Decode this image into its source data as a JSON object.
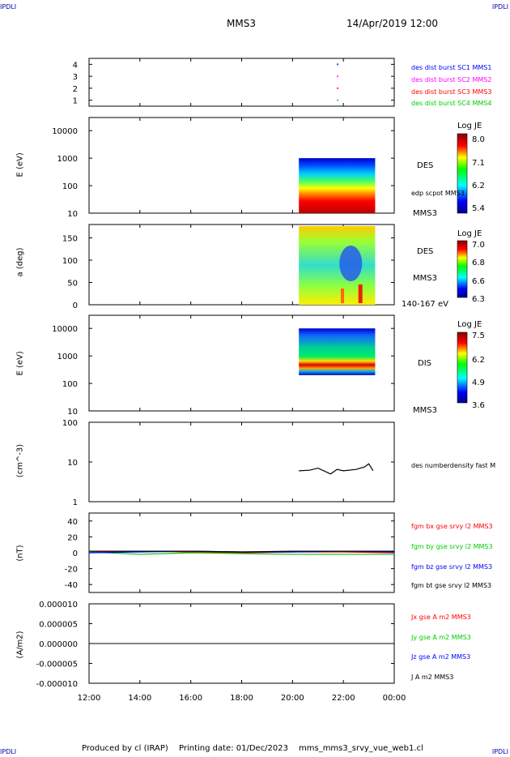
{
  "corners": {
    "tl": "IPDLI",
    "tr": "IPDLI",
    "bl": "IPDLI",
    "br": "IPDLI"
  },
  "header": {
    "spacecraft": "MMS3",
    "datetime": "14/Apr/2019 12:00"
  },
  "footer": {
    "produced_by": "Produced by cl (IRAP)",
    "printing_date": "Printing date: 01/Dec/2023",
    "filename": "mms_mms3_srvy_vue_web1.cl"
  },
  "colors": {
    "blue": "#0000ff",
    "magenta": "#ff00ff",
    "red": "#ff0000",
    "green": "#00cc00",
    "black": "#000000"
  },
  "x_axis": {
    "ticks": [
      "12:00",
      "14:00",
      "16:00",
      "18:00",
      "20:00",
      "22:00",
      "00:00"
    ]
  },
  "panels": {
    "burst": {
      "yticks": [
        "4",
        "3",
        "2",
        "1"
      ],
      "legend": [
        "des dist burst SC1 MMS1",
        "des dist burst SC2 MMS2",
        "des dist burst SC3 MMS3",
        "des dist burst SC4 MMS4"
      ]
    },
    "des_energy": {
      "ylabel": "E (eV)",
      "yticks": [
        "10000",
        "1000",
        "100",
        "10"
      ],
      "right1": "DES",
      "right2": "edp scpot MMS3",
      "right3": "MMS3",
      "cb_title": "Log JE",
      "cb_ticks": [
        "8.0",
        "7.1",
        "6.2",
        "5.4"
      ]
    },
    "des_pitch": {
      "ylabel": "a (deg)",
      "yticks": [
        "150",
        "100",
        "50",
        "0"
      ],
      "right1": "DES",
      "right2": "MMS3",
      "right3": "140-167 eV",
      "cb_title": "Log JE",
      "cb_ticks": [
        "7.0",
        "6.8",
        "6.6",
        "6.3"
      ]
    },
    "dis_energy": {
      "ylabel": "E (eV)",
      "yticks": [
        "10000",
        "1000",
        "100",
        "10"
      ],
      "right1": "DIS",
      "right2": "MMS3",
      "cb_title": "Log JE",
      "cb_ticks": [
        "7.5",
        "6.2",
        "4.9",
        "3.6"
      ]
    },
    "density": {
      "ylabel": "(cm^-3)",
      "yticks": [
        "100",
        "10",
        "1"
      ],
      "legend": "des numberdensity fast M"
    },
    "bfield": {
      "ylabel": "(nT)",
      "yticks": [
        "40",
        "20",
        "0",
        "-20",
        "-40"
      ],
      "legend": [
        "fgm bx gse srvy l2 MMS3",
        "fgm by gse srvy l2 MMS3",
        "fgm bz gse srvy l2 MMS3",
        "fgm bt gse srvy l2 MMS3"
      ]
    },
    "current": {
      "ylabel": "(A/m2)",
      "yticks": [
        "0.000010",
        "0.000005",
        "0.000000",
        "-0.000005",
        "-0.000010"
      ],
      "legend": [
        "Jx gse A m2 MMS3",
        "Jy gse A m2 MMS3",
        "Jz gse A m2 MMS3",
        "J A m2 MMS3"
      ]
    }
  },
  "chart_data": [
    {
      "type": "scatter",
      "panel": "burst",
      "ylim": [
        0.5,
        4.5
      ],
      "xlabel": "",
      "ylabel": "",
      "series": [
        {
          "name": "des dist burst SC1 MMS1",
          "x": [
            "21:45"
          ],
          "y": [
            4
          ]
        },
        {
          "name": "des dist burst SC2 MMS2",
          "x": [
            "21:45"
          ],
          "y": [
            3
          ]
        },
        {
          "name": "des dist burst SC3 MMS3",
          "x": [
            "21:45"
          ],
          "y": [
            2
          ]
        },
        {
          "name": "des dist burst SC4 MMS4",
          "x": [
            "21:45"
          ],
          "y": [
            1
          ]
        }
      ]
    },
    {
      "type": "heatmap",
      "panel": "des_energy",
      "ylabel": "E (eV)",
      "yscale": "log",
      "ylim": [
        10,
        30000
      ],
      "x_range": [
        "20:15",
        "23:15"
      ],
      "y_range": [
        10,
        1000
      ],
      "colorbar": {
        "title": "Log JE",
        "range": [
          5.4,
          8.0
        ]
      }
    },
    {
      "type": "heatmap",
      "panel": "des_pitch",
      "ylabel": "a (deg)",
      "ylim": [
        0,
        180
      ],
      "x_range": [
        "20:15",
        "23:15"
      ],
      "y_range": [
        0,
        180
      ],
      "colorbar": {
        "title": "Log JE",
        "range": [
          6.3,
          7.0
        ]
      }
    },
    {
      "type": "heatmap",
      "panel": "dis_energy",
      "ylabel": "E (eV)",
      "yscale": "log",
      "ylim": [
        10,
        30000
      ],
      "x_range": [
        "20:15",
        "23:15"
      ],
      "y_range": [
        200,
        10000
      ],
      "colorbar": {
        "title": "Log JE",
        "range": [
          3.6,
          7.5
        ]
      }
    },
    {
      "type": "line",
      "panel": "density",
      "ylabel": "(cm^-3)",
      "yscale": "log",
      "ylim": [
        1,
        100
      ],
      "series": [
        {
          "name": "des numberdensity fast M",
          "x": [
            "20:15",
            "20:40",
            "21:00",
            "21:30",
            "21:45",
            "22:00",
            "22:30",
            "22:50",
            "23:00",
            "23:10"
          ],
          "y": [
            6,
            6.2,
            7,
            5,
            6.5,
            6,
            6.5,
            7.5,
            9,
            6
          ]
        }
      ]
    },
    {
      "type": "line",
      "panel": "bfield",
      "ylabel": "(nT)",
      "ylim": [
        -50,
        50
      ],
      "x": [
        "12:00",
        "14:00",
        "16:00",
        "18:00",
        "20:00",
        "22:00",
        "00:00"
      ],
      "series": [
        {
          "name": "fgm bx gse srvy l2 MMS3",
          "values": [
            1,
            2,
            1,
            0,
            1,
            1,
            0
          ]
        },
        {
          "name": "fgm by gse srvy l2 MMS3",
          "values": [
            1,
            -2,
            0,
            -1,
            -2,
            -2,
            -2
          ]
        },
        {
          "name": "fgm bz gse srvy l2 MMS3",
          "values": [
            0,
            1,
            2,
            1,
            1,
            2,
            1
          ]
        },
        {
          "name": "fgm bt gse srvy l2 MMS3",
          "values": [
            2,
            2,
            2,
            1,
            2,
            2,
            2
          ]
        }
      ]
    },
    {
      "type": "line",
      "panel": "current",
      "ylabel": "(A/m2)",
      "ylim": [
        -1e-05,
        1e-05
      ],
      "x": [
        "12:00",
        "00:00"
      ],
      "series": [
        {
          "name": "J A m2 MMS3",
          "values": [
            0,
            0
          ]
        }
      ]
    }
  ]
}
